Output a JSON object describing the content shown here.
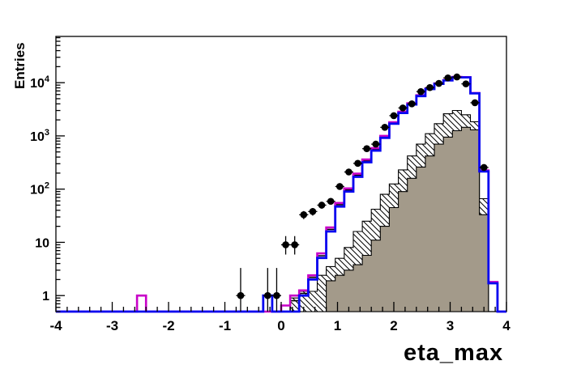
{
  "chart": {
    "title": "",
    "y_title": "Entries",
    "x_title": "eta_max"
  },
  "chart_data": {
    "type": "histogram-overlay",
    "x_label": "eta_max",
    "y_label": "Entries",
    "y_scale": "log",
    "x_range": [
      -4,
      4
    ],
    "y_range": [
      0.5,
      74000
    ],
    "bin_width": 0.16,
    "grid": false,
    "legend": "none",
    "x_major_ticks": [
      -4,
      -3,
      -2,
      -1,
      0,
      1,
      2,
      3,
      4
    ],
    "x_tick_labels": [
      "-4",
      "-3",
      "-2",
      "-1",
      "0",
      "1",
      "2",
      "3",
      "4"
    ],
    "x_minor_tick_step": 0.2,
    "y_decade_labels": [
      {
        "base": "1",
        "exp": "",
        "value": 1
      },
      {
        "base": "10",
        "exp": "",
        "value": 10
      },
      {
        "base": "10",
        "exp": "2",
        "value": 100
      },
      {
        "base": "10",
        "exp": "3",
        "value": 1000
      },
      {
        "base": "10",
        "exp": "4",
        "value": 10000
      }
    ],
    "series": [
      {
        "name": "hatched-histogram",
        "style": "hatched-fill",
        "line_color": "#000000",
        "bins": [
          [
            0.24,
            0.9
          ],
          [
            0.4,
            1.2
          ],
          [
            0.56,
            1.2
          ],
          [
            0.72,
            2.4
          ],
          [
            0.88,
            3.5
          ],
          [
            1.04,
            5.0
          ],
          [
            1.2,
            8.0
          ],
          [
            1.36,
            16
          ],
          [
            1.52,
            25
          ],
          [
            1.68,
            42
          ],
          [
            1.84,
            80
          ],
          [
            2.0,
            125
          ],
          [
            2.16,
            230
          ],
          [
            2.32,
            420
          ],
          [
            2.48,
            700
          ],
          [
            2.64,
            1100
          ],
          [
            2.8,
            1700
          ],
          [
            2.96,
            2600
          ],
          [
            3.12,
            3000
          ],
          [
            3.28,
            2500
          ],
          [
            3.44,
            1850
          ],
          [
            3.6,
            66
          ]
        ]
      },
      {
        "name": "gray-filled-histogram",
        "style": "solid-fill",
        "fill_color": "#a39a8a",
        "line_color": "#000000",
        "bins": [
          [
            0.88,
            1.9
          ],
          [
            1.04,
            2.4
          ],
          [
            1.2,
            3.0
          ],
          [
            1.36,
            3.8
          ],
          [
            1.52,
            5.7
          ],
          [
            1.68,
            11
          ],
          [
            1.84,
            20
          ],
          [
            2.0,
            45
          ],
          [
            2.16,
            90
          ],
          [
            2.32,
            160
          ],
          [
            2.48,
            260
          ],
          [
            2.64,
            420
          ],
          [
            2.8,
            700
          ],
          [
            2.96,
            950
          ],
          [
            3.12,
            1250
          ],
          [
            3.28,
            1450
          ],
          [
            3.44,
            1300
          ],
          [
            3.6,
            33
          ]
        ]
      },
      {
        "name": "black-line-histogram",
        "style": "line",
        "line_color": "#000000",
        "line_width": 1.6,
        "bins": [
          [
            -0.16,
            1.0
          ],
          [
            0.24,
            0.8
          ],
          [
            0.4,
            1.1
          ],
          [
            0.56,
            2.2
          ],
          [
            0.72,
            5.6
          ],
          [
            0.88,
            17.5
          ],
          [
            1.04,
            51
          ],
          [
            1.2,
            96
          ],
          [
            1.36,
            182
          ],
          [
            1.52,
            340
          ],
          [
            1.68,
            560
          ],
          [
            1.84,
            960
          ],
          [
            2.0,
            1750
          ],
          [
            2.16,
            2780
          ],
          [
            2.32,
            4000
          ],
          [
            2.48,
            5700
          ],
          [
            2.64,
            7700
          ],
          [
            2.8,
            9600
          ],
          [
            2.96,
            11100
          ],
          [
            3.12,
            12700
          ],
          [
            3.28,
            12650
          ],
          [
            3.44,
            6350
          ],
          [
            3.6,
            220
          ],
          [
            3.76,
            1.75
          ]
        ]
      },
      {
        "name": "magenta-line-histogram",
        "style": "line",
        "line_color": "#c800c8",
        "line_width": 2.6,
        "bins": [
          [
            -2.48,
            1.0
          ],
          [
            0.08,
            0.65
          ],
          [
            0.24,
            1.0
          ],
          [
            0.4,
            1.25
          ],
          [
            0.56,
            2.4
          ],
          [
            0.72,
            6.2
          ],
          [
            0.88,
            19
          ],
          [
            1.04,
            55
          ],
          [
            1.2,
            103
          ],
          [
            1.36,
            195
          ],
          [
            1.52,
            360
          ],
          [
            1.68,
            590
          ],
          [
            1.84,
            1000
          ],
          [
            2.0,
            1800
          ],
          [
            2.16,
            2850
          ],
          [
            2.32,
            4100
          ],
          [
            2.48,
            5800
          ],
          [
            2.64,
            7800
          ],
          [
            2.8,
            9700
          ],
          [
            2.96,
            11200
          ],
          [
            3.12,
            12800
          ],
          [
            3.28,
            12700
          ],
          [
            3.44,
            6400
          ],
          [
            3.6,
            225
          ],
          [
            3.76,
            1.8
          ]
        ]
      },
      {
        "name": "blue-line-histogram",
        "style": "line",
        "line_color": "#0808f0",
        "line_width": 2.8,
        "bins": [
          [
            -0.16,
            1.0
          ],
          [
            0.4,
            1.0
          ],
          [
            0.56,
            2.0
          ],
          [
            0.72,
            5.1
          ],
          [
            0.88,
            16
          ],
          [
            1.04,
            47
          ],
          [
            1.2,
            90
          ],
          [
            1.36,
            170
          ],
          [
            1.52,
            320
          ],
          [
            1.68,
            530
          ],
          [
            1.84,
            920
          ],
          [
            2.0,
            1700
          ],
          [
            2.16,
            2700
          ],
          [
            2.32,
            3900
          ],
          [
            2.48,
            5600
          ],
          [
            2.64,
            7600
          ],
          [
            2.8,
            9500
          ],
          [
            2.96,
            11000
          ],
          [
            3.12,
            12600
          ],
          [
            3.28,
            12600
          ],
          [
            3.44,
            6300
          ],
          [
            3.6,
            215
          ],
          [
            3.76,
            1.7
          ]
        ]
      },
      {
        "name": "data-points",
        "style": "points-with-errors",
        "marker": "filled-circle",
        "color": "#000000",
        "points": [
          [
            -0.72,
            1,
            0.35,
            3.3
          ],
          [
            -0.24,
            1,
            0.35,
            3.3
          ],
          [
            -0.08,
            1,
            0.35,
            3.3
          ],
          [
            0.08,
            9,
            5.9,
            13.1
          ],
          [
            0.24,
            9,
            5.9,
            13.1
          ],
          [
            0.4,
            33,
            27.3,
            38.7
          ],
          [
            0.56,
            38,
            31.8,
            44.2
          ],
          [
            0.72,
            50,
            42.9,
            57.1
          ],
          [
            0.88,
            59,
            51.3,
            66.7
          ],
          [
            1.04,
            112,
            101.4,
            122.6
          ],
          [
            1.2,
            210,
            195.5,
            224.5
          ],
          [
            1.36,
            305,
            287.5,
            322.5
          ],
          [
            1.52,
            575,
            551,
            599
          ],
          [
            1.68,
            700,
            673.5,
            726.5
          ],
          [
            1.84,
            1450,
            1412,
            1488
          ],
          [
            2.0,
            2400,
            2351,
            2449
          ],
          [
            2.16,
            3350,
            3292,
            3408
          ],
          [
            2.32,
            4000,
            3937,
            4063
          ],
          [
            2.48,
            6800,
            6718,
            6882
          ],
          [
            2.64,
            8100,
            8010,
            8190
          ],
          [
            2.8,
            9700,
            9602,
            9798
          ],
          [
            2.96,
            12300,
            12190,
            12410
          ],
          [
            3.12,
            12800,
            12687,
            12913
          ],
          [
            3.28,
            9500,
            9403,
            9597
          ],
          [
            3.44,
            4200,
            4135,
            4265
          ],
          [
            3.6,
            255,
            239,
            271
          ]
        ]
      }
    ]
  }
}
